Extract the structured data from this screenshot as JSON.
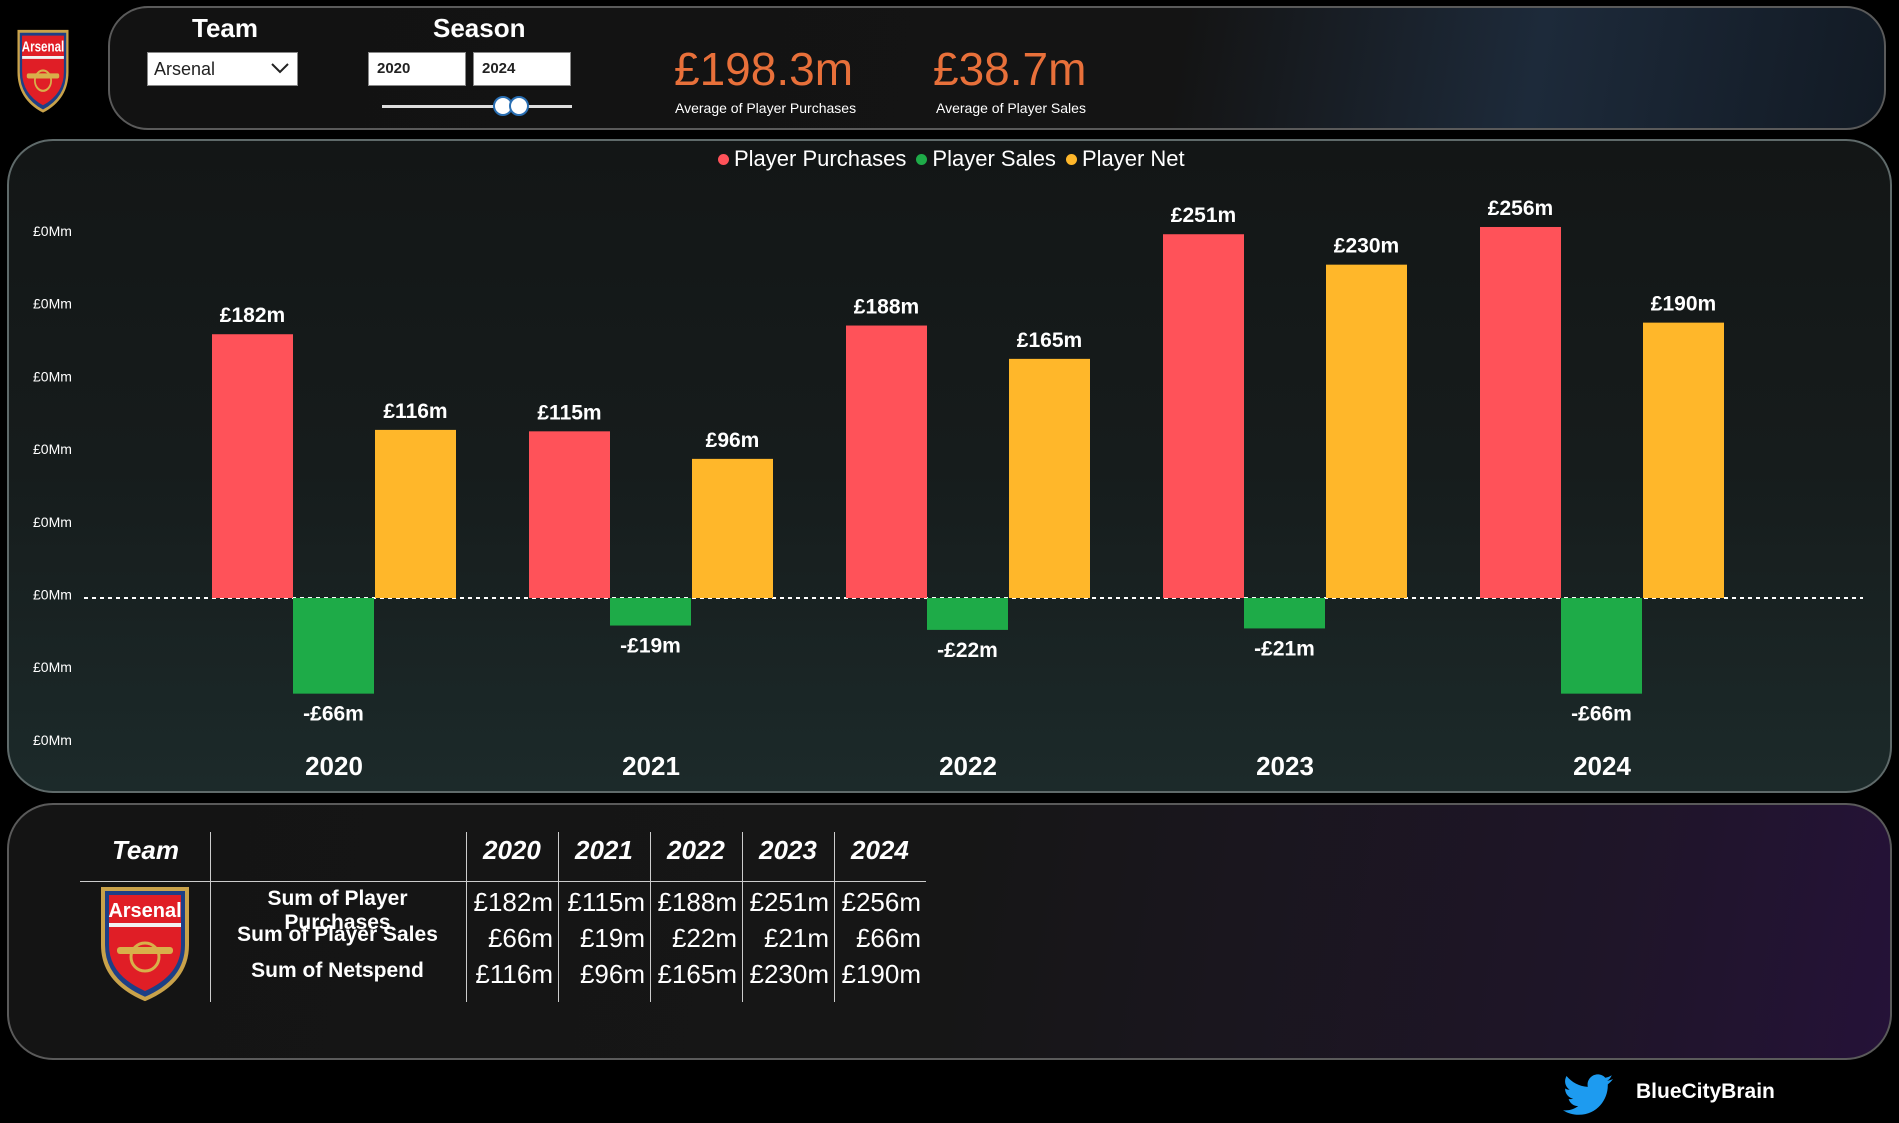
{
  "filters": {
    "team_title": "Team",
    "team_value": "Arsenal",
    "season_title": "Season",
    "season_start": "2020",
    "season_end": "2024",
    "slider_range": [
      0.6,
      0.68
    ]
  },
  "kpis": [
    {
      "value": "£198.3m",
      "label": "Average of Player Purchases"
    },
    {
      "value": "£38.7m",
      "label": "Average of Player Sales"
    }
  ],
  "crest_text": "Arsenal",
  "colors": {
    "purchases": "#FF5259",
    "sales": "#1EAB48",
    "net": "#FFB72A",
    "kpi": "#E8703A",
    "twitter": "#1D9BF0"
  },
  "chart_data": {
    "type": "bar",
    "categories": [
      "2020",
      "2021",
      "2022",
      "2023",
      "2024"
    ],
    "series": [
      {
        "name": "Player Purchases",
        "values": [
          182,
          115,
          188,
          251,
          256
        ],
        "labels": [
          "£182m",
          "£115m",
          "£188m",
          "£251m",
          "£256m"
        ]
      },
      {
        "name": "Player Sales",
        "values": [
          -66,
          -19,
          -22,
          -21,
          -66
        ],
        "labels": [
          "-£66m",
          "-£19m",
          "-£22m",
          "-£21m",
          "-£66m"
        ]
      },
      {
        "name": "Player Net",
        "values": [
          116,
          96,
          165,
          230,
          190
        ],
        "labels": [
          "£116m",
          "£96m",
          "£165m",
          "£230m",
          "£190m"
        ]
      }
    ],
    "y_ticks": [
      "£0Mm",
      "£0Mm",
      "£0Mm",
      "£0Mm",
      "£0Mm",
      "£0Mm",
      "£0Mm",
      "£0Mm"
    ],
    "ylim": [
      -100,
      250
    ],
    "legend_position": "top-center",
    "zero_line": "dotted",
    "grid": false
  },
  "table": {
    "team_header": "Team",
    "years": [
      "2020",
      "2021",
      "2022",
      "2023",
      "2024"
    ],
    "rows": [
      {
        "label": "Sum of Player Purchases",
        "values": [
          "£182m",
          "£115m",
          "£188m",
          "£251m",
          "£256m"
        ]
      },
      {
        "label": "Sum of Player Sales",
        "values": [
          "£66m",
          "£19m",
          "£22m",
          "£21m",
          "£66m"
        ]
      },
      {
        "label": "Sum of Netspend",
        "values": [
          "£116m",
          "£96m",
          "£165m",
          "£230m",
          "£190m"
        ]
      }
    ]
  },
  "footer": {
    "handle": "BlueCityBrain",
    "icon": "twitter-bird-icon"
  }
}
